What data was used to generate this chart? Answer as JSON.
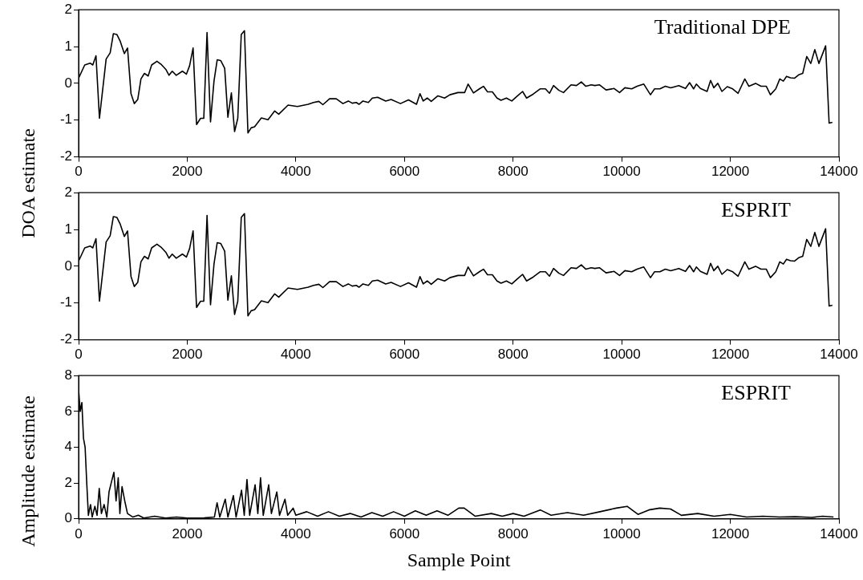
{
  "chart_data": [
    {
      "type": "line",
      "ylabel": "DOA estimate",
      "annotations": [
        "Traditional DPE"
      ],
      "xlim": [
        0,
        14000
      ],
      "xticks": [
        0,
        2000,
        4000,
        6000,
        8000,
        10000,
        12000,
        14000
      ],
      "ylim": [
        -2,
        2
      ],
      "yticks": [
        -2,
        -1,
        0,
        1,
        2
      ],
      "grid": false,
      "legend": false,
      "marker": "none",
      "line_style": "solid",
      "series": [
        {
          "color": "#000000",
          "x": [
            0,
            113,
            212,
            261,
            320,
            384,
            507,
            581,
            640,
            704,
            768,
            842,
            901,
            965,
            1025,
            1089,
            1148,
            1212,
            1281,
            1345,
            1443,
            1517,
            1606,
            1665,
            1724,
            1798,
            1911,
            1985,
            2044,
            2108,
            2172,
            2246,
            2305,
            2365,
            2429,
            2493,
            2552,
            2616,
            2690,
            2749,
            2813,
            2872,
            2931,
            2995,
            3054,
            3118,
            3177,
            3241,
            3365,
            3488,
            3611,
            3685,
            3857,
            4030,
            4227,
            4325,
            4424,
            4498,
            4621,
            4744,
            4867,
            4966,
            5039,
            5113,
            5163,
            5236,
            5335,
            5409,
            5507,
            5655,
            5754,
            5926,
            6074,
            6222,
            6286,
            6345,
            6419,
            6493,
            6616,
            6739,
            6837,
            6985,
            7108,
            7172,
            7271,
            7380,
            7455,
            7529,
            7619,
            7704,
            7778,
            7877,
            7976,
            8075,
            8175,
            8249,
            8373,
            8497,
            8596,
            8670,
            8745,
            8844,
            8928,
            9068,
            9167,
            9256,
            9340,
            9440,
            9504,
            9589,
            9712,
            9861,
            9960,
            10059,
            10184,
            10283,
            10407,
            10530,
            10605,
            10704,
            10803,
            10902,
            11051,
            11175,
            11250,
            11324,
            11374,
            11449,
            11572,
            11637,
            11696,
            11770,
            11845,
            11944,
            12044,
            12143,
            12267,
            12342,
            12465,
            12565,
            12663,
            12738,
            12837,
            12911,
            12976,
            13035,
            13109,
            13184,
            13258,
            13333,
            13407,
            13482,
            13556,
            13631,
            13755,
            13819,
            13879
          ],
          "values": [
            0.14,
            0.5,
            0.55,
            0.5,
            0.75,
            -0.95,
            0.66,
            0.83,
            1.35,
            1.33,
            1.14,
            0.81,
            0.96,
            -0.28,
            -0.55,
            -0.44,
            0.12,
            0.27,
            0.2,
            0.5,
            0.6,
            0.52,
            0.38,
            0.22,
            0.33,
            0.22,
            0.33,
            0.25,
            0.48,
            0.96,
            -1.12,
            -0.95,
            -0.95,
            1.38,
            -1.05,
            0.06,
            0.64,
            0.62,
            0.41,
            -0.92,
            -0.26,
            -1.31,
            -0.95,
            1.33,
            1.43,
            -1.35,
            -1.21,
            -1.18,
            -0.94,
            -0.99,
            -0.75,
            -0.84,
            -0.59,
            -0.63,
            -0.57,
            -0.52,
            -0.49,
            -0.58,
            -0.42,
            -0.42,
            -0.55,
            -0.48,
            -0.54,
            -0.52,
            -0.57,
            -0.48,
            -0.52,
            -0.4,
            -0.38,
            -0.48,
            -0.44,
            -0.55,
            -0.45,
            -0.57,
            -0.28,
            -0.48,
            -0.4,
            -0.49,
            -0.34,
            -0.4,
            -0.31,
            -0.25,
            -0.25,
            -0.02,
            -0.26,
            -0.15,
            -0.08,
            -0.23,
            -0.23,
            -0.4,
            -0.46,
            -0.4,
            -0.48,
            -0.35,
            -0.22,
            -0.4,
            -0.29,
            -0.15,
            -0.15,
            -0.27,
            -0.06,
            -0.19,
            -0.25,
            -0.04,
            -0.06,
            0.04,
            -0.08,
            -0.04,
            -0.06,
            -0.04,
            -0.18,
            -0.14,
            -0.25,
            -0.12,
            -0.15,
            -0.08,
            -0.02,
            -0.31,
            -0.15,
            -0.15,
            -0.08,
            -0.12,
            -0.06,
            -0.14,
            0.02,
            -0.15,
            -0.02,
            -0.14,
            -0.22,
            0.08,
            -0.12,
            0.0,
            -0.22,
            -0.09,
            -0.15,
            -0.27,
            0.12,
            -0.08,
            0.0,
            -0.08,
            -0.08,
            -0.31,
            -0.15,
            0.12,
            0.06,
            0.19,
            0.15,
            0.14,
            0.23,
            0.27,
            0.73,
            0.54,
            0.92,
            0.54,
            1.02,
            -1.08,
            -1.06
          ]
        }
      ]
    },
    {
      "type": "line",
      "annotations": [
        "ESPRIT"
      ],
      "xlim": [
        0,
        14000
      ],
      "xticks": [
        0,
        2000,
        4000,
        6000,
        8000,
        10000,
        12000,
        14000
      ],
      "ylim": [
        -2,
        2
      ],
      "yticks": [
        -2,
        -1,
        0,
        1,
        2
      ],
      "grid": false,
      "legend": false,
      "marker": "none",
      "line_style": "solid",
      "series": [
        {
          "color": "#000000",
          "x": [
            0,
            113,
            212,
            261,
            320,
            384,
            507,
            581,
            640,
            704,
            768,
            842,
            901,
            965,
            1025,
            1089,
            1148,
            1212,
            1281,
            1345,
            1443,
            1517,
            1606,
            1665,
            1724,
            1798,
            1911,
            1985,
            2044,
            2108,
            2172,
            2246,
            2305,
            2365,
            2429,
            2493,
            2552,
            2616,
            2690,
            2749,
            2813,
            2872,
            2931,
            2995,
            3054,
            3118,
            3177,
            3241,
            3365,
            3488,
            3611,
            3685,
            3857,
            4030,
            4227,
            4325,
            4424,
            4498,
            4621,
            4744,
            4867,
            4966,
            5039,
            5113,
            5163,
            5236,
            5335,
            5409,
            5507,
            5655,
            5754,
            5926,
            6074,
            6222,
            6286,
            6345,
            6419,
            6493,
            6616,
            6739,
            6837,
            6985,
            7108,
            7172,
            7271,
            7380,
            7455,
            7529,
            7619,
            7704,
            7778,
            7877,
            7976,
            8075,
            8175,
            8249,
            8373,
            8497,
            8596,
            8670,
            8745,
            8844,
            8928,
            9068,
            9167,
            9256,
            9340,
            9440,
            9504,
            9589,
            9712,
            9861,
            9960,
            10059,
            10184,
            10283,
            10407,
            10530,
            10605,
            10704,
            10803,
            10902,
            11051,
            11175,
            11250,
            11324,
            11374,
            11449,
            11572,
            11637,
            11696,
            11770,
            11845,
            11944,
            12044,
            12143,
            12267,
            12342,
            12465,
            12565,
            12663,
            12738,
            12837,
            12911,
            12976,
            13035,
            13109,
            13184,
            13258,
            13333,
            13407,
            13482,
            13556,
            13631,
            13755,
            13819,
            13879
          ],
          "values": [
            0.14,
            0.5,
            0.55,
            0.5,
            0.75,
            -0.95,
            0.66,
            0.83,
            1.35,
            1.33,
            1.14,
            0.81,
            0.96,
            -0.28,
            -0.55,
            -0.44,
            0.12,
            0.27,
            0.2,
            0.5,
            0.6,
            0.52,
            0.38,
            0.22,
            0.33,
            0.22,
            0.33,
            0.25,
            0.48,
            0.96,
            -1.12,
            -0.95,
            -0.95,
            1.38,
            -1.05,
            0.06,
            0.64,
            0.62,
            0.41,
            -0.92,
            -0.26,
            -1.31,
            -0.95,
            1.33,
            1.43,
            -1.35,
            -1.21,
            -1.18,
            -0.94,
            -0.99,
            -0.75,
            -0.84,
            -0.59,
            -0.63,
            -0.57,
            -0.52,
            -0.49,
            -0.58,
            -0.42,
            -0.42,
            -0.55,
            -0.48,
            -0.54,
            -0.52,
            -0.57,
            -0.48,
            -0.52,
            -0.4,
            -0.38,
            -0.48,
            -0.44,
            -0.55,
            -0.45,
            -0.57,
            -0.28,
            -0.48,
            -0.4,
            -0.49,
            -0.34,
            -0.4,
            -0.31,
            -0.25,
            -0.25,
            -0.02,
            -0.26,
            -0.15,
            -0.08,
            -0.23,
            -0.23,
            -0.4,
            -0.46,
            -0.4,
            -0.48,
            -0.35,
            -0.22,
            -0.4,
            -0.29,
            -0.15,
            -0.15,
            -0.27,
            -0.06,
            -0.19,
            -0.25,
            -0.04,
            -0.06,
            0.04,
            -0.08,
            -0.04,
            -0.06,
            -0.04,
            -0.18,
            -0.14,
            -0.25,
            -0.12,
            -0.15,
            -0.08,
            -0.02,
            -0.31,
            -0.15,
            -0.15,
            -0.08,
            -0.12,
            -0.06,
            -0.14,
            0.02,
            -0.15,
            -0.02,
            -0.14,
            -0.22,
            0.08,
            -0.12,
            0.0,
            -0.22,
            -0.09,
            -0.15,
            -0.27,
            0.12,
            -0.08,
            0.0,
            -0.08,
            -0.08,
            -0.31,
            -0.15,
            0.12,
            0.06,
            0.19,
            0.15,
            0.14,
            0.23,
            0.27,
            0.73,
            0.54,
            0.92,
            0.54,
            1.02,
            -1.08,
            -1.06
          ]
        }
      ]
    },
    {
      "type": "line",
      "ylabel": "Amplitude estimate",
      "xlabel": "Sample Point",
      "annotations": [
        "ESPRIT"
      ],
      "xlim": [
        0,
        14000
      ],
      "xticks": [
        0,
        2000,
        4000,
        6000,
        8000,
        10000,
        12000,
        14000
      ],
      "ylim": [
        0,
        8
      ],
      "yticks": [
        0,
        2,
        4,
        6,
        8
      ],
      "grid": false,
      "legend": false,
      "marker": "none",
      "line_style": "solid",
      "series": [
        {
          "color": "#000000",
          "x": [
            0,
            30,
            60,
            90,
            120,
            150,
            180,
            220,
            250,
            300,
            340,
            380,
            420,
            470,
            520,
            560,
            600,
            650,
            690,
            730,
            760,
            800,
            850,
            900,
            950,
            1000,
            1100,
            1200,
            1400,
            1600,
            1800,
            2000,
            2300,
            2500,
            2550,
            2600,
            2700,
            2750,
            2850,
            2900,
            3000,
            3050,
            3100,
            3150,
            3250,
            3300,
            3350,
            3400,
            3500,
            3550,
            3650,
            3700,
            3800,
            3850,
            3950,
            4000,
            4200,
            4400,
            4600,
            4800,
            5000,
            5200,
            5400,
            5600,
            5800,
            6000,
            6200,
            6400,
            6600,
            6800,
            7000,
            7100,
            7300,
            7600,
            7800,
            8000,
            8200,
            8500,
            8700,
            9000,
            9300,
            9600,
            9900,
            10100,
            10300,
            10500,
            10700,
            10900,
            11100,
            11400,
            11700,
            12000,
            12300,
            12600,
            12900,
            13200,
            13500,
            13700,
            13900
          ],
          "values": [
            7.2,
            6.0,
            6.5,
            4.5,
            4.0,
            2.0,
            0.2,
            0.8,
            0.1,
            0.7,
            0.2,
            1.7,
            0.3,
            0.8,
            0.1,
            1.5,
            2.0,
            2.6,
            1.0,
            2.3,
            0.3,
            1.8,
            1.0,
            0.3,
            0.2,
            0.1,
            0.2,
            0.05,
            0.15,
            0.05,
            0.1,
            0.05,
            0.05,
            0.1,
            0.9,
            0.1,
            1.1,
            0.1,
            1.3,
            0.1,
            1.6,
            0.2,
            2.2,
            0.2,
            1.9,
            0.3,
            2.3,
            0.2,
            1.9,
            0.3,
            1.5,
            0.2,
            1.1,
            0.2,
            0.6,
            0.2,
            0.4,
            0.15,
            0.4,
            0.15,
            0.3,
            0.1,
            0.35,
            0.15,
            0.4,
            0.15,
            0.45,
            0.2,
            0.45,
            0.2,
            0.6,
            0.6,
            0.15,
            0.3,
            0.15,
            0.3,
            0.15,
            0.5,
            0.2,
            0.35,
            0.2,
            0.4,
            0.6,
            0.7,
            0.25,
            0.5,
            0.6,
            0.55,
            0.2,
            0.3,
            0.15,
            0.25,
            0.1,
            0.15,
            0.1,
            0.12,
            0.08,
            0.15,
            0.1
          ]
        }
      ]
    }
  ]
}
